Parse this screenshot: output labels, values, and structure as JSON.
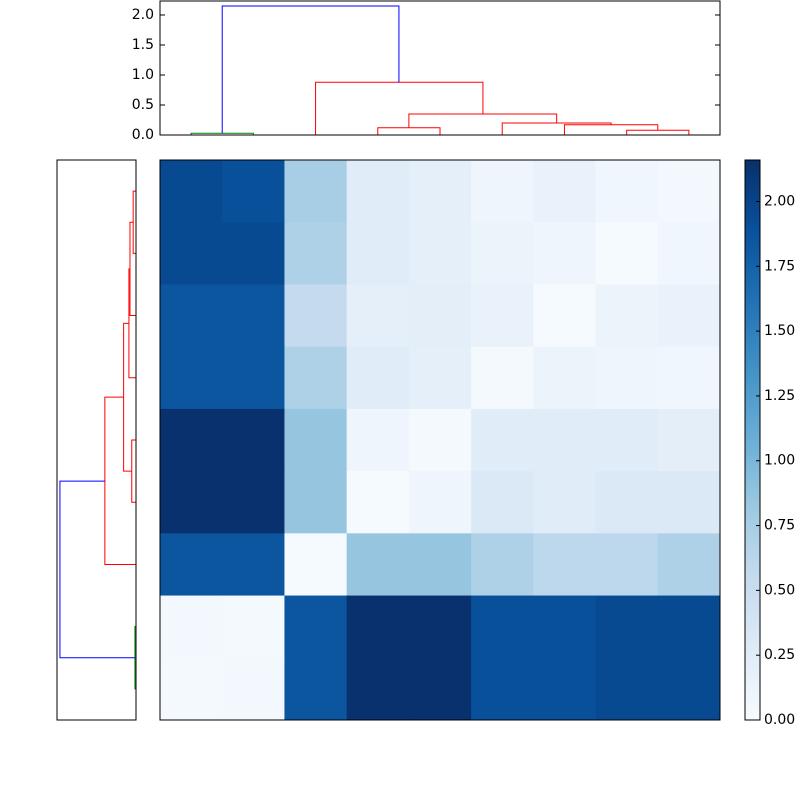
{
  "chart_data": {
    "type": "heatmap",
    "colormap": "Blues",
    "matrix": [
      [
        1.95,
        1.9,
        0.75,
        0.25,
        0.2,
        0.1,
        0.15,
        0.08,
        0.05
      ],
      [
        1.95,
        1.95,
        0.7,
        0.25,
        0.2,
        0.12,
        0.1,
        0.02,
        0.08
      ],
      [
        1.85,
        1.85,
        0.55,
        0.2,
        0.22,
        0.15,
        0.02,
        0.12,
        0.15
      ],
      [
        1.85,
        1.85,
        0.7,
        0.25,
        0.2,
        0.03,
        0.12,
        0.1,
        0.08
      ],
      [
        2.15,
        2.15,
        0.85,
        0.1,
        0.03,
        0.25,
        0.25,
        0.25,
        0.22
      ],
      [
        2.15,
        2.15,
        0.85,
        0.02,
        0.1,
        0.3,
        0.25,
        0.3,
        0.3
      ],
      [
        1.85,
        1.85,
        0.02,
        0.85,
        0.85,
        0.7,
        0.6,
        0.6,
        0.7
      ],
      [
        0.05,
        0.03,
        1.85,
        2.15,
        2.15,
        1.9,
        1.9,
        1.95,
        1.95
      ],
      [
        0.03,
        0.05,
        1.85,
        2.15,
        2.15,
        1.9,
        1.9,
        1.95,
        1.95
      ]
    ],
    "clim": [
      0,
      2.16
    ],
    "cticks": [
      {
        "value": 0,
        "label": "0.00"
      },
      {
        "value": 0.25,
        "label": "0.25"
      },
      {
        "value": 0.5,
        "label": "0.50"
      },
      {
        "value": 0.75,
        "label": "0.75"
      },
      {
        "value": 1,
        "label": "1.00"
      },
      {
        "value": 1.25,
        "label": "1.25"
      },
      {
        "value": 1.5,
        "label": "1.50"
      },
      {
        "value": 1.75,
        "label": "1.75"
      },
      {
        "value": 2,
        "label": "2.00"
      }
    ],
    "dendrogram": {
      "ylim": [
        0,
        2.233
      ],
      "yticks": [
        {
          "value": 0,
          "label": "0.0"
        },
        {
          "value": 0.5,
          "label": "0.5"
        },
        {
          "value": 1,
          "label": "1.0"
        },
        {
          "value": 1.5,
          "label": "1.5"
        },
        {
          "value": 2,
          "label": "2.0"
        }
      ],
      "links": [
        {
          "left": 0,
          "right": 1,
          "left_height": 0,
          "right_height": 0,
          "height": 0.03,
          "color": "#008000"
        },
        {
          "left": 3,
          "right": 4,
          "left_height": 0,
          "right_height": 0,
          "height": 0.12,
          "color": "#ff0000"
        },
        {
          "left": 7,
          "right": 8,
          "left_height": 0,
          "right_height": 0,
          "height": 0.08,
          "color": "#ff0000"
        },
        {
          "left": 6,
          "right": 7.5,
          "left_height": 0,
          "right_height": 0.08,
          "height": 0.17,
          "color": "#ff0000"
        },
        {
          "left": 5,
          "right": 6.75,
          "left_height": 0,
          "right_height": 0.17,
          "height": 0.2,
          "color": "#ff0000"
        },
        {
          "left": 3.5,
          "right": 5.875,
          "left_height": 0.12,
          "right_height": 0.2,
          "height": 0.35,
          "color": "#ff0000"
        },
        {
          "left": 2,
          "right": 4.69,
          "left_height": 0,
          "right_height": 0.35,
          "height": 0.88,
          "color": "#ff0000"
        },
        {
          "left": 0.5,
          "right": 3.34,
          "left_height": 0.03,
          "right_height": 0.88,
          "height": 2.15,
          "color": "#0000ff"
        }
      ]
    }
  }
}
